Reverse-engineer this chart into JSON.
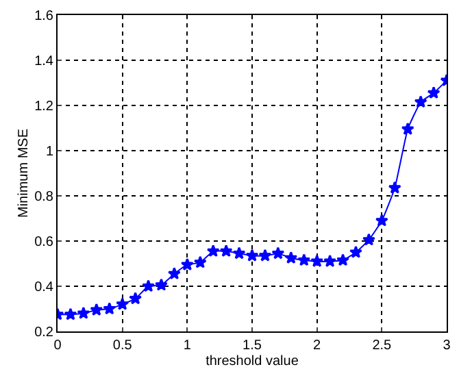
{
  "chart_data": {
    "type": "line",
    "xlabel": "threshold value",
    "ylabel": "Minimum MSE",
    "x": [
      0,
      0.1,
      0.2,
      0.3,
      0.4,
      0.5,
      0.6,
      0.7,
      0.8,
      0.9,
      1.0,
      1.1,
      1.2,
      1.3,
      1.4,
      1.5,
      1.6,
      1.7,
      1.8,
      1.9,
      2.0,
      2.1,
      2.2,
      2.3,
      2.4,
      2.5,
      2.6,
      2.7,
      2.8,
      2.9,
      3.0
    ],
    "series": [
      {
        "color": "#0000ff",
        "values": [
          0.275,
          0.275,
          0.28,
          0.295,
          0.3,
          0.32,
          0.345,
          0.4,
          0.405,
          0.455,
          0.495,
          0.505,
          0.555,
          0.555,
          0.545,
          0.535,
          0.535,
          0.545,
          0.525,
          0.515,
          0.51,
          0.51,
          0.515,
          0.55,
          0.605,
          0.69,
          0.835,
          1.095,
          1.215,
          1.255,
          1.31
        ]
      }
    ],
    "xlim": [
      0,
      3
    ],
    "xticks": [
      0,
      0.5,
      1,
      1.5,
      2,
      2.5,
      3
    ],
    "ylim": [
      0.2,
      1.6
    ],
    "yticks": [
      0.2,
      0.4,
      0.6,
      0.8,
      1,
      1.2,
      1.4,
      1.6
    ],
    "grid": true,
    "marker": "star",
    "line_style": "solid",
    "legend": false
  }
}
